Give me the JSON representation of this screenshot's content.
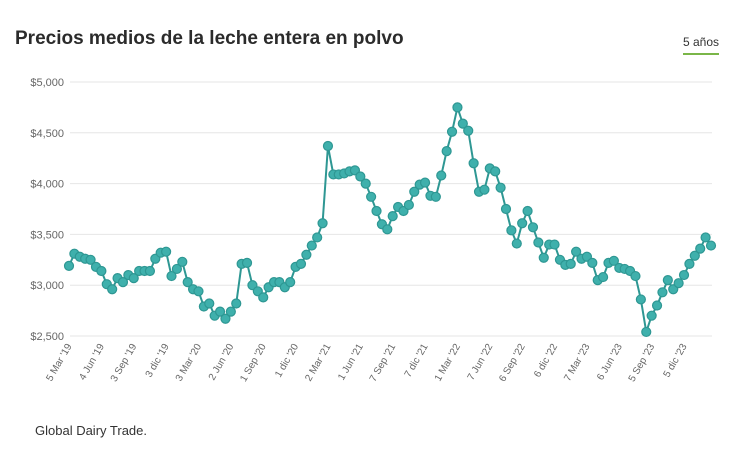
{
  "header": {
    "title": "Precios medios de la leche entera en polvo",
    "range_button": "5 años"
  },
  "footer": {
    "source": "Global Dairy Trade."
  },
  "colors": {
    "series": "#3fb0ac",
    "series_stroke": "#2e9793",
    "grid": "#e6e6e6",
    "range_underline": "#7ab648"
  },
  "chart_data": {
    "type": "line",
    "title": "Precios medios de la leche entera en polvo",
    "ylim": [
      2500,
      5000
    ],
    "yticks": [
      "$2,500",
      "$3,000",
      "$3,500",
      "$4,000",
      "$4,500",
      "$5,000"
    ],
    "ytick_values": [
      2500,
      3000,
      3500,
      4000,
      4500,
      5000
    ],
    "xtick_labels": [
      "5 Mar '19",
      "4 Jun '19",
      "3 Sep '19",
      "3 dic '19",
      "3 Mar '20",
      "2 Jun '20",
      "1 Sep '20",
      "1 dic '20",
      "2 Mar '21",
      "1 Jun '21",
      "7 Sep '21",
      "7 dic '21",
      "1 Mar '22",
      "7 Jun '22",
      "6 Sep '22",
      "6 dic '22",
      "7 Mar '23",
      "6 Jun '23",
      "5 Sep '23",
      "5 dic '23"
    ],
    "xtick_every": 6,
    "grid": true,
    "values": [
      3190,
      3310,
      3280,
      3260,
      3250,
      3180,
      3140,
      3010,
      2960,
      3070,
      3030,
      3100,
      3070,
      3140,
      3140,
      3140,
      3260,
      3320,
      3330,
      3090,
      3160,
      3230,
      3030,
      2960,
      2940,
      2790,
      2820,
      2700,
      2740,
      2670,
      2740,
      2820,
      3210,
      3220,
      3000,
      2940,
      2880,
      2980,
      3030,
      3030,
      2980,
      3030,
      3180,
      3210,
      3300,
      3390,
      3470,
      3610,
      4370,
      4090,
      4090,
      4100,
      4120,
      4130,
      4070,
      4000,
      3870,
      3730,
      3600,
      3550,
      3680,
      3770,
      3730,
      3790,
      3920,
      3990,
      4010,
      3880,
      3870,
      4080,
      4320,
      4510,
      4750,
      4590,
      4520,
      4200,
      3920,
      3940,
      4150,
      4120,
      3960,
      3750,
      3540,
      3410,
      3610,
      3730,
      3570,
      3420,
      3270,
      3400,
      3400,
      3250,
      3200,
      3210,
      3330,
      3260,
      3280,
      3220,
      3050,
      3080,
      3220,
      3240,
      3170,
      3160,
      3140,
      3090,
      2860,
      2540,
      2700,
      2800,
      2930,
      3050,
      2960,
      3020,
      3100,
      3210,
      3290,
      3360,
      3470,
      3390
    ]
  }
}
